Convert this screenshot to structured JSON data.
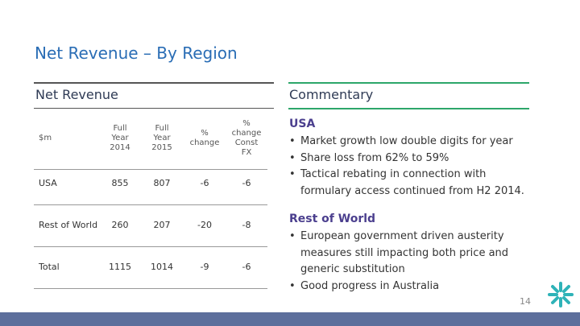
{
  "header": {
    "title": "Net Revenue – By Region"
  },
  "left_panel": {
    "title": "Net Revenue"
  },
  "table": {
    "columns": [
      [
        "$m"
      ],
      [
        "Full",
        "Year",
        "2014"
      ],
      [
        "Full",
        "Year",
        "2015"
      ],
      [
        "%",
        "change"
      ],
      [
        "%",
        "change",
        "Const",
        "FX"
      ]
    ],
    "rows": [
      [
        "USA",
        "855",
        "807",
        "-6",
        "-6"
      ],
      [
        "Rest of World",
        "260",
        "207",
        "-20",
        "-8"
      ],
      [
        "Total",
        "1115",
        "1014",
        "-9",
        "-6"
      ]
    ]
  },
  "commentary": {
    "title": "Commentary",
    "sections": [
      {
        "heading": "USA",
        "bullets": [
          [
            "Market growth low double digits for year"
          ],
          [
            "Share loss from 62% to 59%"
          ],
          [
            "Tactical rebating in connection with",
            "formulary access continued from H2 2014."
          ]
        ]
      },
      {
        "heading": "Rest of World",
        "bullets": [
          [
            "European government driven austerity",
            "measures still impacting both price and",
            "generic substitution"
          ],
          [
            "Good progress in Australia"
          ]
        ]
      }
    ]
  },
  "footer": {
    "page_number": "14"
  }
}
